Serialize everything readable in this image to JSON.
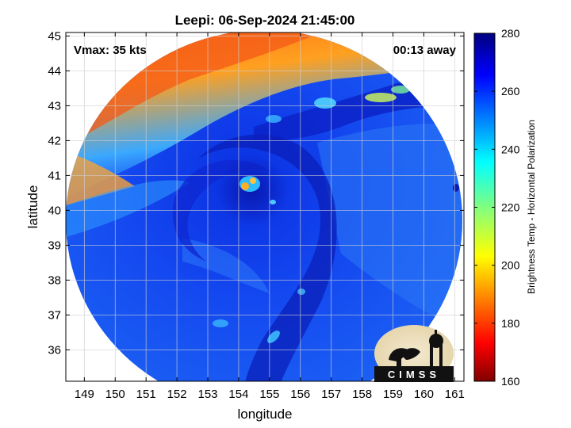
{
  "title": "Leepi: 06-Sep-2024 21:45:00",
  "vmax_label": "Vmax: 35 kts",
  "time_label": "00:13 away",
  "axes": {
    "xlabel": "longitude",
    "ylabel": "latitude",
    "xlim": [
      148.4,
      161.3
    ],
    "ylim": [
      35.1,
      45.1
    ],
    "xticks": [
      "149",
      "150",
      "151",
      "152",
      "153",
      "154",
      "155",
      "156",
      "157",
      "158",
      "159",
      "160",
      "161"
    ],
    "yticks": [
      "36",
      "37",
      "38",
      "39",
      "40",
      "41",
      "42",
      "43",
      "44",
      "45"
    ],
    "grid": true
  },
  "colorbar": {
    "label": "Brightness Temp - Horizontal Polarization",
    "ticks": [
      "160",
      "180",
      "200",
      "220",
      "240",
      "260",
      "280"
    ],
    "range": [
      160,
      280
    ],
    "colormap": "jet"
  },
  "storm_center": {
    "lon": 154.4,
    "lat": 40.7
  },
  "logo_text": "CIMSS",
  "colors": {
    "background": "#ffffff",
    "grid": "#d0d0d0",
    "frame": "#000000"
  }
}
